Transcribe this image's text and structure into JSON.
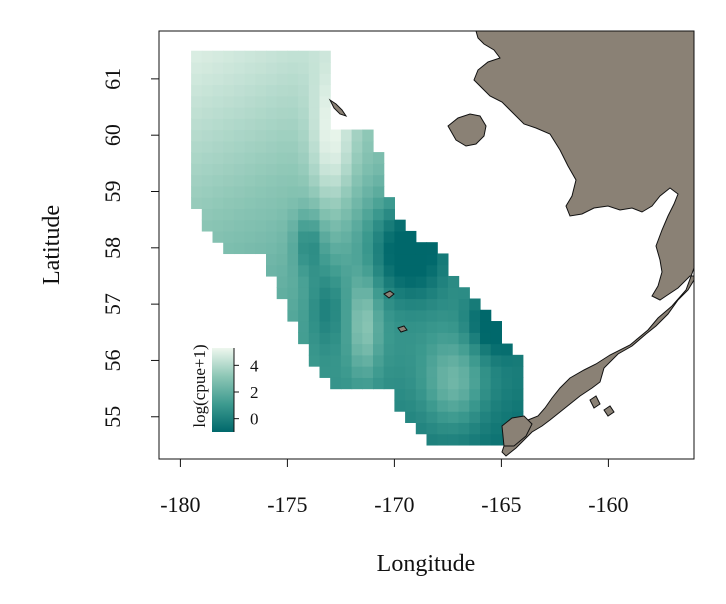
{
  "chart_data": {
    "type": "heatmap",
    "title": "",
    "xlabel": "Longitude",
    "ylabel": "Latitude",
    "xlim": [
      -181,
      -156
    ],
    "ylim": [
      54.25,
      61.85
    ],
    "x_ticks": [
      {
        "value": -180,
        "label": "-180"
      },
      {
        "value": -175,
        "label": "-175"
      },
      {
        "value": -170,
        "label": "-170"
      },
      {
        "value": -165,
        "label": "-165"
      },
      {
        "value": -160,
        "label": "-160"
      }
    ],
    "y_ticks": [
      {
        "value": 55,
        "label": "55"
      },
      {
        "value": 56,
        "label": "56"
      },
      {
        "value": 57,
        "label": "57"
      },
      {
        "value": 58,
        "label": "58"
      },
      {
        "value": 59,
        "label": "59"
      },
      {
        "value": 60,
        "label": "60"
      },
      {
        "value": 61,
        "label": "61"
      }
    ],
    "cell_size_deg": [
      0.5,
      0.2
    ],
    "value_range": [
      -1,
      5.3
    ],
    "colorscale": [
      "#00686b",
      "#3d9a8f",
      "#8cc6b5",
      "#eef7ee"
    ],
    "land_color": "#8a8175",
    "legend": {
      "title": "log(cpue+1)",
      "ticks": [
        {
          "value": 0,
          "label": "0"
        },
        {
          "value": 2,
          "label": "2"
        },
        {
          "value": 4,
          "label": "4"
        }
      ]
    }
  }
}
